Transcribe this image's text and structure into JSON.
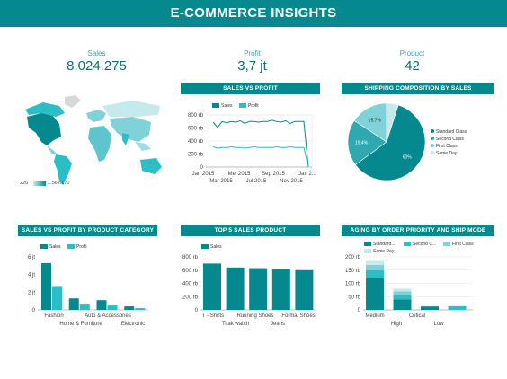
{
  "header": {
    "title": "E-COMMERCE INSIGHTS"
  },
  "kpis": [
    {
      "label": "Sales",
      "value": "8.024.275"
    },
    {
      "label": "Profit",
      "value": "3,7 jt"
    },
    {
      "label": "Product",
      "value": "42"
    }
  ],
  "map": {
    "min_label": "226",
    "max_label": "1.562.170"
  },
  "colors": {
    "primary": "#05898f",
    "secondary": "#2bbec6",
    "light": "#7fd3d8",
    "pale": "#c5eaec"
  },
  "titles": {
    "sales_vs_profit": "SALES VS PROFIT",
    "shipping": "SHIPPING COMPOSITION BY SALES",
    "category": "SALES VS PROFIT BY PRODUCT CATEGORY",
    "top5": "TOP 5 SALES PRODUCT",
    "aging": "AGING BY ORDER PRIORITY AND SHIP MODE"
  },
  "chart_data": [
    {
      "type": "line",
      "title": "SALES VS PROFIT",
      "series": [
        {
          "name": "Sales",
          "values": [
            690,
            610,
            700,
            680,
            700,
            690,
            710,
            670,
            700,
            700,
            690,
            700,
            700,
            720,
            700,
            690,
            710,
            670,
            700,
            700,
            700,
            0
          ]
        },
        {
          "name": "Profit",
          "values": [
            310,
            290,
            300,
            300,
            310,
            300,
            300,
            290,
            300,
            310,
            300,
            300,
            300,
            300,
            310,
            300,
            300,
            310,
            300,
            300,
            300,
            0
          ]
        }
      ],
      "x_ticks_top": [
        "Jan 2015",
        "Mei 2015",
        "Sep 2015",
        "Jan 2..."
      ],
      "x_ticks_bottom": [
        "Mar 2015",
        "Jul 2015",
        "Nov 2015"
      ],
      "y_ticks": [
        "800 rb",
        "600 rb",
        "400 rb",
        "200 rb",
        "0"
      ],
      "ylim": [
        0,
        800
      ]
    },
    {
      "type": "pie",
      "title": "SHIPPING COMPOSITION BY SALES",
      "slices": [
        {
          "name": "Standard Class",
          "value": 60,
          "label": "60%"
        },
        {
          "name": "Second Class",
          "value": 19.4,
          "label": "19,4%"
        },
        {
          "name": "First Class",
          "value": 15.7,
          "label": "15,7%"
        },
        {
          "name": "Same Day",
          "value": 4.9,
          "label": ""
        }
      ]
    },
    {
      "type": "bar",
      "title": "SALES VS PROFIT BY PRODUCT CATEGORY",
      "categories": [
        "Fashion",
        "Home & Furniture",
        "Auto & Accessories",
        "Electronic"
      ],
      "series": [
        {
          "name": "Sales",
          "values": [
            5.3,
            1.3,
            1.1,
            0.4
          ]
        },
        {
          "name": "Profit",
          "values": [
            2.6,
            0.6,
            0.5,
            0.2
          ]
        }
      ],
      "y_ticks": [
        "6 jt",
        "4 jt",
        "2 jt",
        "0"
      ],
      "ylim": [
        0,
        6
      ]
    },
    {
      "type": "bar",
      "title": "TOP 5 SALES PRODUCT",
      "categories": [
        "T - Shirts",
        "Titak watch",
        "Running Shoes",
        "Jeans",
        "Formal Shoes"
      ],
      "series": [
        {
          "name": "Sales",
          "values": [
            700,
            640,
            630,
            610,
            600
          ]
        }
      ],
      "y_ticks": [
        "800 rb",
        "600 rb",
        "400 rb",
        "200 rb",
        "0"
      ],
      "ylim": [
        0,
        800
      ]
    },
    {
      "type": "bar",
      "title": "AGING BY ORDER PRIORITY AND SHIP MODE",
      "categories": [
        "Medium",
        "High",
        "Critical",
        "Low"
      ],
      "series": [
        {
          "name": "Standard...",
          "values": [
            120,
            40,
            12,
            0
          ]
        },
        {
          "name": "Second C...",
          "values": [
            30,
            15,
            2,
            14
          ]
        },
        {
          "name": "First Class",
          "values": [
            20,
            15,
            0,
            0
          ]
        },
        {
          "name": "Same Day",
          "values": [
            15,
            10,
            0,
            0
          ]
        }
      ],
      "y_ticks": [
        "200 rb",
        "150 rb",
        "100 rb",
        "50 rb",
        "0"
      ],
      "ylim": [
        0,
        200
      ]
    }
  ]
}
